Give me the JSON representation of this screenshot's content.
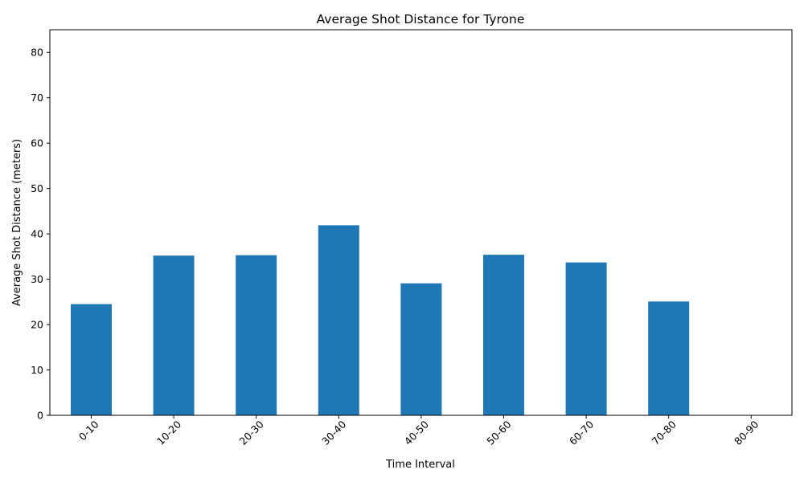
{
  "chart_data": {
    "type": "bar",
    "title": "Average Shot Distance for Tyrone",
    "xlabel": "Time Interval",
    "ylabel": "Average Shot Distance (meters)",
    "categories": [
      "0-10",
      "10-20",
      "20-30",
      "30-40",
      "40-50",
      "50-60",
      "60-70",
      "70-80",
      "80-90"
    ],
    "values": [
      24.5,
      35.2,
      35.3,
      41.9,
      29.1,
      35.4,
      33.7,
      25.1,
      0
    ],
    "ylim": [
      0,
      85
    ],
    "yticks": [
      0,
      10,
      20,
      30,
      40,
      50,
      60,
      70,
      80
    ],
    "bar_color": "#1f77b4",
    "grid": false,
    "legend": "none"
  }
}
